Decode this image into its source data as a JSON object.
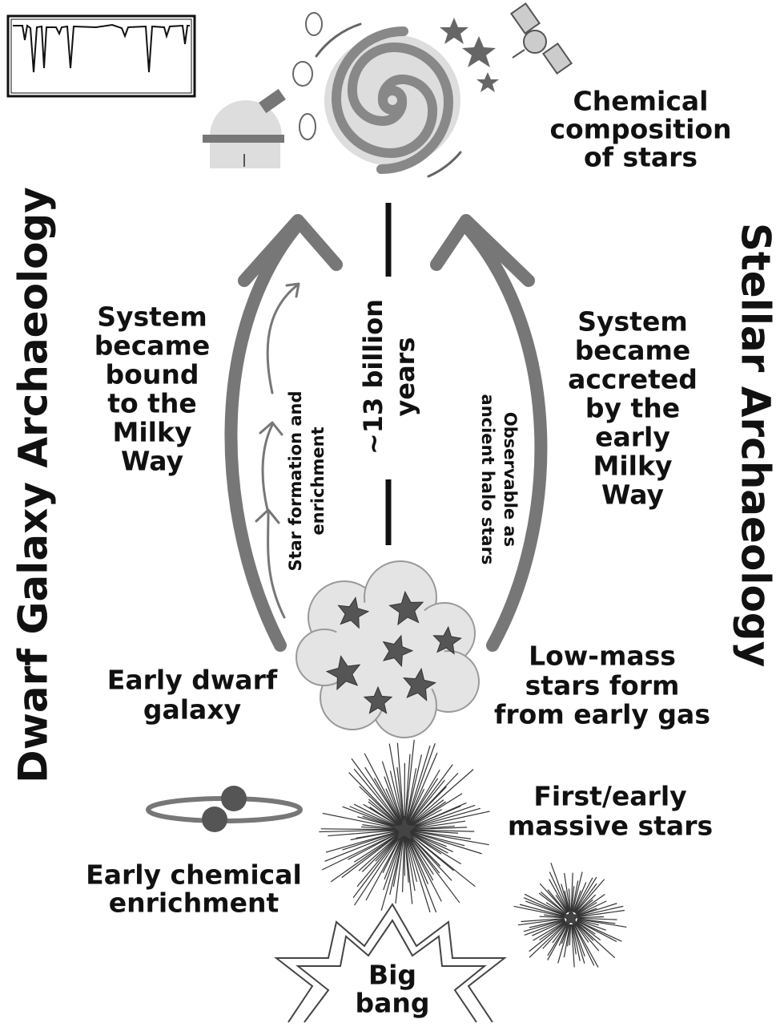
{
  "corner_title": [
    "Chemical",
    "composition",
    "of stars"
  ],
  "left_title": "Dwarf Galaxy Archaeology",
  "right_title": "Stellar Archaeology",
  "bound_label": [
    "System",
    "became",
    "bound",
    "to the",
    "Milky",
    "Way"
  ],
  "accreted_label": [
    "System",
    "became",
    "accreted",
    "by the",
    "early",
    "Milky",
    "Way"
  ],
  "star_formation_label": [
    "Star formation and",
    "enrichment"
  ],
  "time_label": [
    "~13 billion",
    "years"
  ],
  "observable_label": [
    "Observable as",
    "ancient halo stars"
  ],
  "dwarf_label": [
    "Early dwarf",
    "galaxy"
  ],
  "low_mass_label": [
    "Low-mass",
    "stars form",
    "from early gas"
  ],
  "massive_label": [
    "First/early",
    "massive stars"
  ],
  "enrichment_label": [
    "Early chemical",
    "enrichment"
  ],
  "big_bang_label": [
    "Big",
    "bang"
  ]
}
